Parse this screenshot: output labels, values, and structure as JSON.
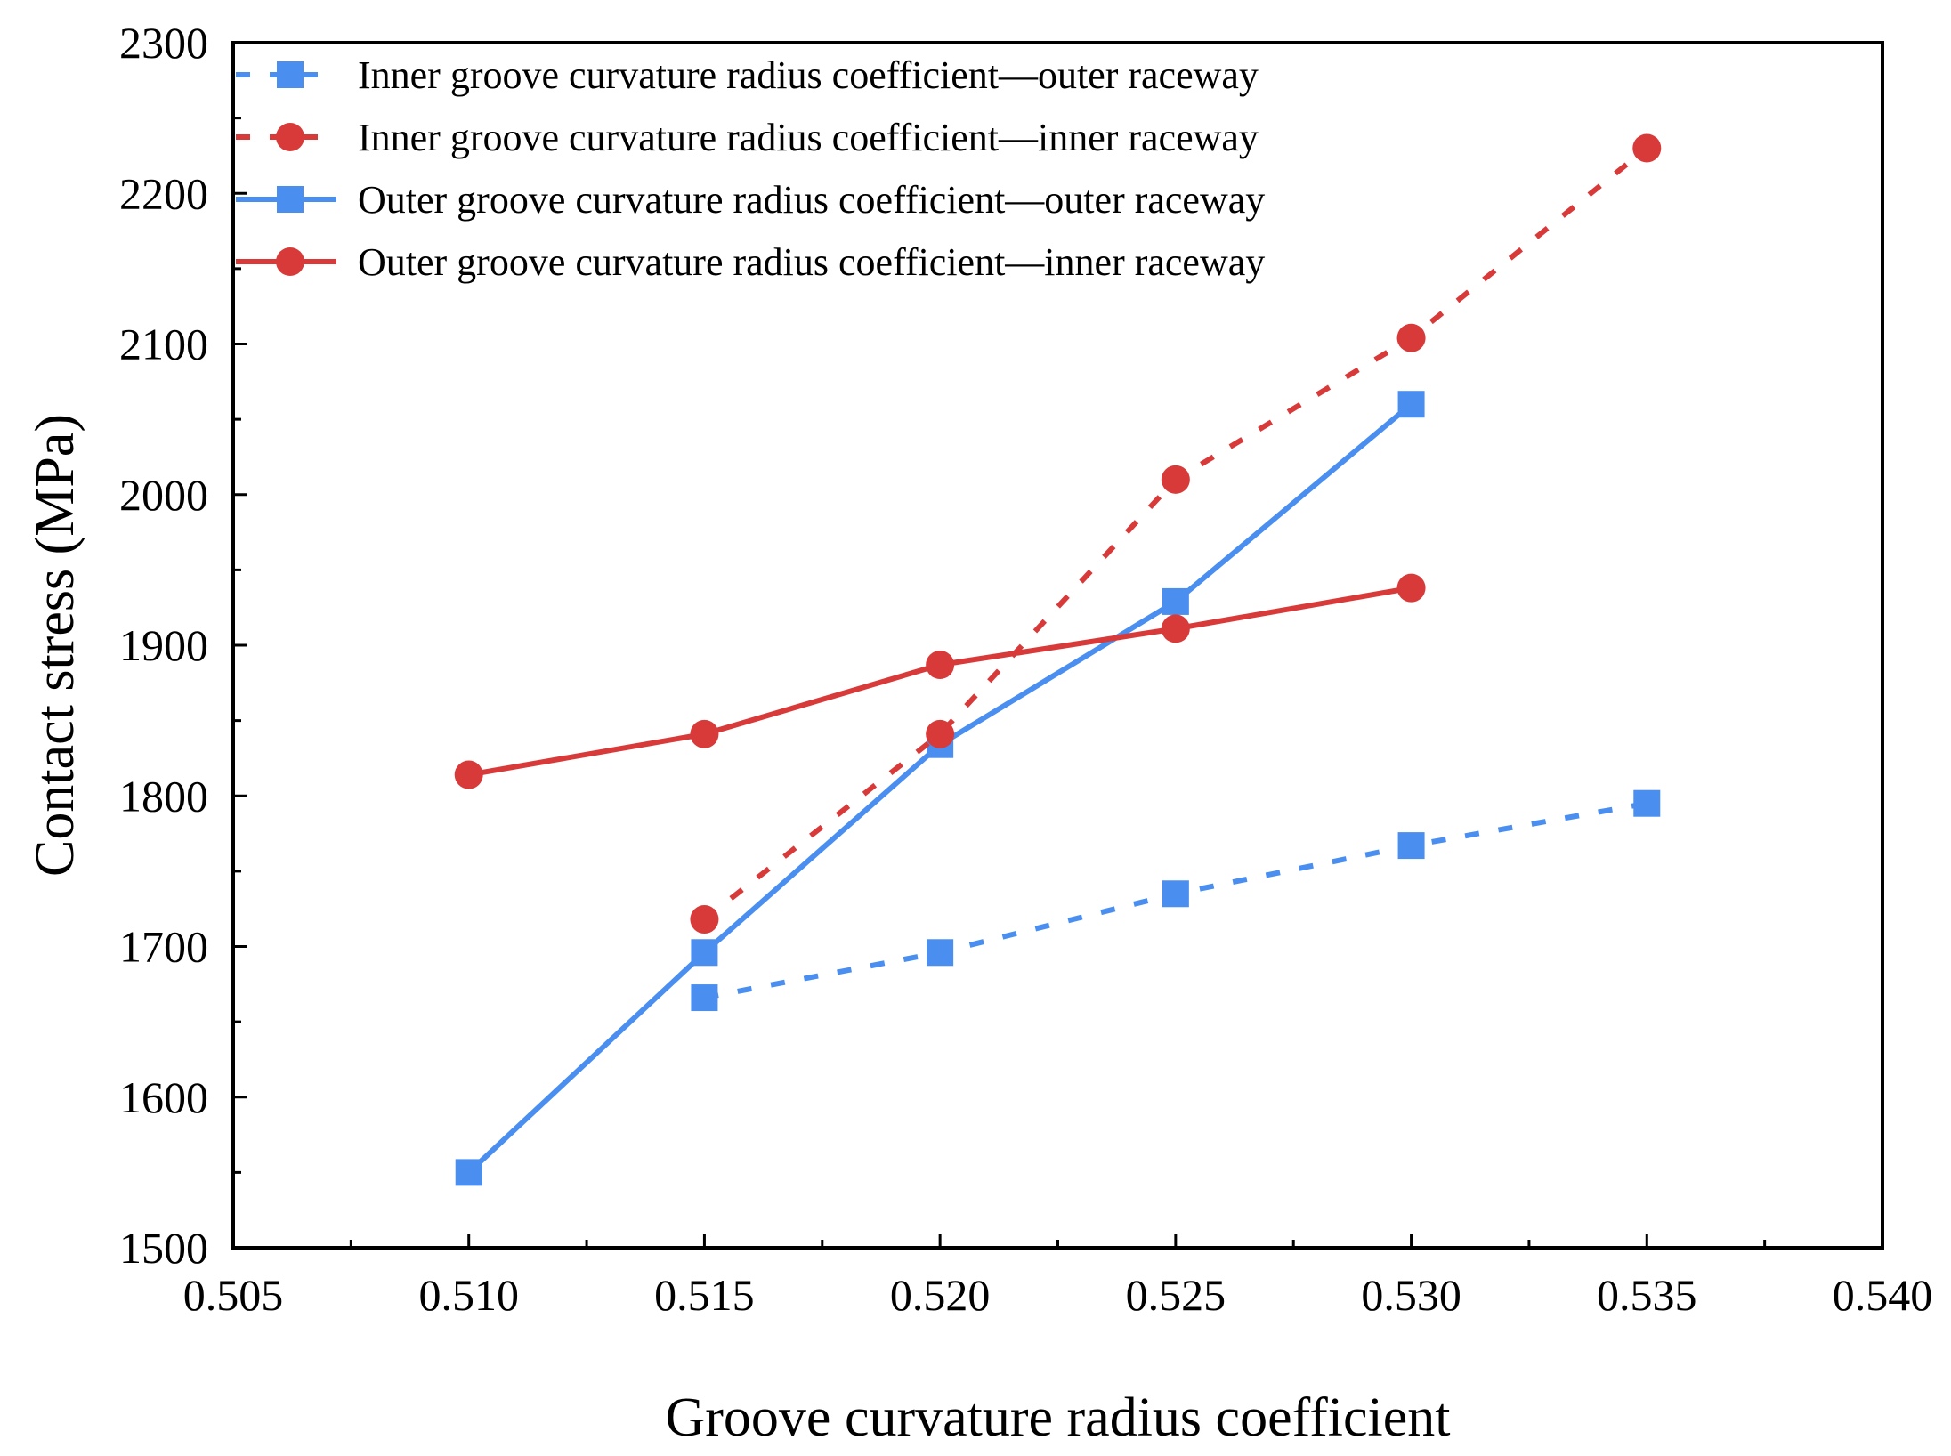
{
  "chart_data": {
    "type": "line",
    "title": "",
    "xlabel": "Groove curvature radius coefficient",
    "ylabel": "Contact stress (MPa)",
    "xlim": [
      0.505,
      0.54
    ],
    "ylim": [
      1500,
      2300
    ],
    "xticks": [
      "0.505",
      "0.510",
      "0.515",
      "0.520",
      "0.525",
      "0.530",
      "0.535",
      "0.540"
    ],
    "yticks": [
      "1500",
      "1600",
      "1700",
      "1800",
      "1900",
      "2000",
      "2100",
      "2200",
      "2300"
    ],
    "grid": false,
    "legend_position": "top-left",
    "series": [
      {
        "name": "Inner groove curvature radius coefficient—outer raceway",
        "color": "#4a8ff0",
        "marker": "square",
        "line_style": "dashed",
        "x": [
          0.515,
          0.52,
          0.525,
          0.53,
          0.535
        ],
        "values": [
          1666,
          1696,
          1735,
          1767,
          1795
        ]
      },
      {
        "name": "Inner groove curvature radius coefficient—inner raceway",
        "color": "#d83a3a",
        "marker": "circle",
        "line_style": "dashed",
        "x": [
          0.515,
          0.52,
          0.525,
          0.53,
          0.535
        ],
        "values": [
          1718,
          1841,
          2010,
          2104,
          2230
        ]
      },
      {
        "name": "Outer groove curvature radius coefficient—outer raceway",
        "color": "#4a8ff0",
        "marker": "square",
        "line_style": "solid",
        "x": [
          0.51,
          0.515,
          0.52,
          0.525,
          0.53
        ],
        "values": [
          1550,
          1696,
          1834,
          1929,
          2060
        ]
      },
      {
        "name": "Outer groove curvature radius coefficient—inner raceway",
        "color": "#d83a3a",
        "marker": "circle",
        "line_style": "solid",
        "x": [
          0.51,
          0.515,
          0.52,
          0.525,
          0.53
        ],
        "values": [
          1814,
          1841,
          1887,
          1911,
          1938
        ]
      }
    ]
  }
}
